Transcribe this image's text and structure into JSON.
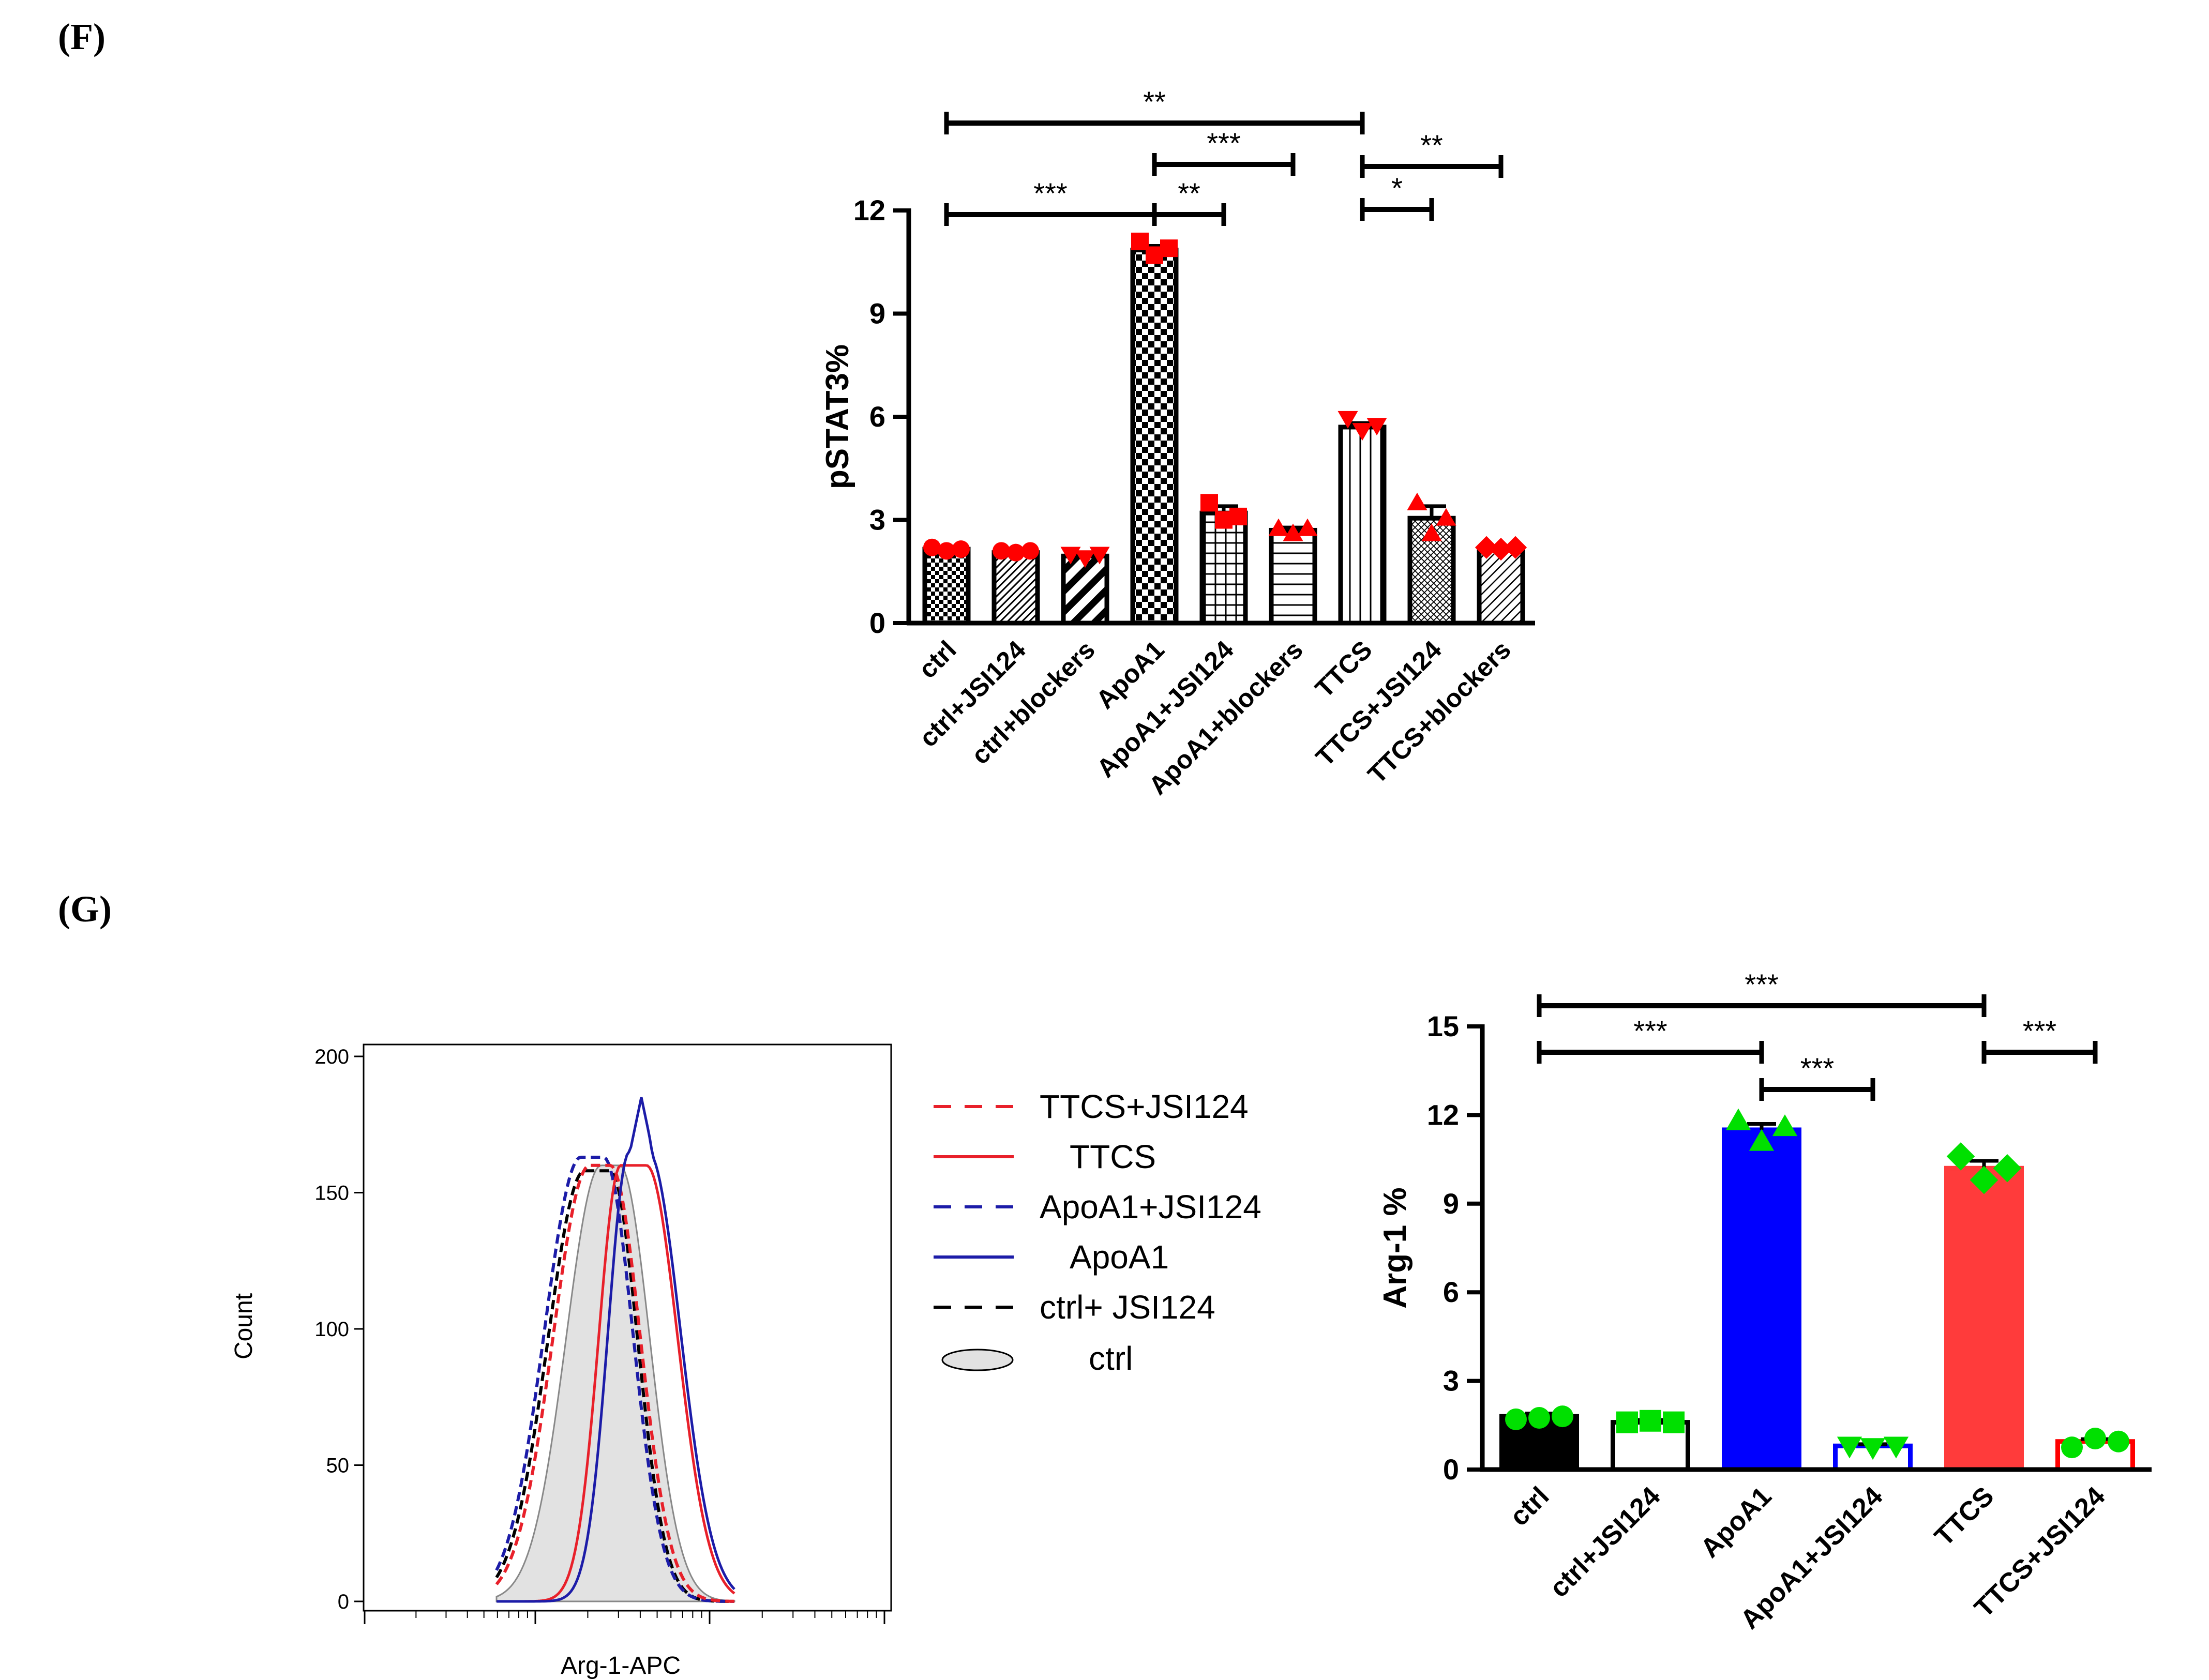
{
  "panels": {
    "F": "(F)",
    "G": "(G)"
  },
  "colors": {
    "red": "#ff0000",
    "blue": "#0000ff",
    "green": "#00e000",
    "black": "#000000",
    "histRed": "#e8202a",
    "histBlue": "#1c1ca8",
    "histFill": "#e2e2e2",
    "barRedFill": "#ff3b3b"
  },
  "chart_data": [
    {
      "id": "pstat3",
      "type": "bar",
      "ylabel": "pSTAT3%",
      "ylim": [
        0,
        12
      ],
      "yticks": [
        0,
        3,
        6,
        9,
        12
      ],
      "categories": [
        "ctrl",
        "ctrl+JSI124",
        "ctrl+blockers",
        "ApoA1",
        "ApoA1+JSI124",
        "ApoA1+blockers",
        "TTCS",
        "TTCS+JSI124",
        "TTCS+blockers"
      ],
      "values": [
        2.15,
        2.05,
        1.95,
        10.85,
        3.2,
        2.7,
        5.7,
        3.05,
        2.15
      ],
      "errors": [
        0.08,
        0.05,
        0.08,
        0.12,
        0.2,
        0.08,
        0.12,
        0.35,
        0.06
      ],
      "points": [
        [
          2.2,
          2.1,
          2.15
        ],
        [
          2.1,
          2.05,
          2.1
        ],
        [
          2.0,
          1.9,
          2.0
        ],
        [
          11.1,
          10.7,
          10.9
        ],
        [
          3.5,
          3.0,
          3.1
        ],
        [
          2.75,
          2.6,
          2.75
        ],
        [
          5.95,
          5.6,
          5.75
        ],
        [
          3.5,
          2.6,
          3.05
        ],
        [
          2.2,
          2.15,
          2.2
        ]
      ],
      "markers": [
        "circle",
        "circle",
        "triangle-down",
        "square",
        "square",
        "triangle-up",
        "triangle-down",
        "triangle-up",
        "diamond"
      ],
      "significance": [
        {
          "from": 0,
          "to": 6,
          "label": "**"
        },
        {
          "from": 3,
          "to": 5,
          "label": "***"
        },
        {
          "from": 6,
          "to": 8,
          "label": "**"
        },
        {
          "from": 0,
          "to": 3,
          "label": "***"
        },
        {
          "from": 3,
          "to": 4,
          "label": "**"
        },
        {
          "from": 6,
          "to": 7,
          "label": "*"
        }
      ]
    },
    {
      "id": "arg1",
      "type": "bar",
      "ylabel": "Arg-1 %",
      "ylim": [
        0,
        15
      ],
      "yticks": [
        0,
        3,
        6,
        9,
        12,
        15
      ],
      "categories": [
        "ctrl",
        "ctrl+JSI124",
        "ApoA1",
        "ApoA1+JSI124",
        "TTCS",
        "TTCS+JSI124"
      ],
      "values": [
        1.8,
        1.6,
        11.5,
        0.8,
        10.2,
        0.95
      ],
      "errors": [
        0.1,
        0.08,
        0.2,
        0.06,
        0.25,
        0.08
      ],
      "points": [
        [
          1.7,
          1.75,
          1.8
        ],
        [
          1.6,
          1.65,
          1.6
        ],
        [
          11.8,
          11.1,
          11.6
        ],
        [
          0.8,
          0.75,
          0.8
        ],
        [
          10.6,
          9.8,
          10.2
        ],
        [
          0.75,
          1.05,
          0.95
        ]
      ],
      "markers": [
        "circle",
        "square",
        "triangle-up",
        "triangle-down",
        "diamond",
        "circle"
      ],
      "significance": [
        {
          "from": 0,
          "to": 4,
          "label": "***"
        },
        {
          "from": 0,
          "to": 2,
          "label": "***"
        },
        {
          "from": 4,
          "to": 5,
          "label": "***"
        },
        {
          "from": 2,
          "to": 3,
          "label": "***"
        }
      ]
    },
    {
      "id": "histogram",
      "type": "area",
      "xlabel": "Arg-1-APC",
      "ylabel": "Count",
      "ylim": [
        0,
        200
      ],
      "yticks": [
        0,
        50,
        100,
        150,
        200
      ],
      "legend": [
        {
          "label": "TTCS+JSI124",
          "style": "red-dashed"
        },
        {
          "label": "TTCS",
          "style": "red-solid"
        },
        {
          "label": "ApoA1+JSI124",
          "style": "blue-dashed"
        },
        {
          "label": "ApoA1",
          "style": "blue-solid"
        },
        {
          "label": "ctrl+ JSI124",
          "style": "black-dashed"
        },
        {
          "label": "ctrl",
          "style": "gray-filled"
        }
      ]
    }
  ]
}
